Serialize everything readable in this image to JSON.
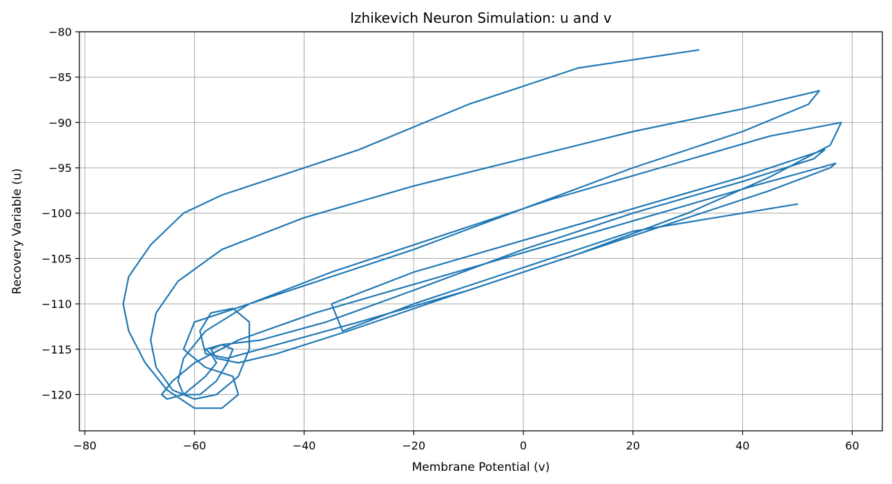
{
  "chart_data": {
    "type": "line",
    "title": "Izhikevich Neuron Simulation: u and v",
    "xlabel": "Membrane Potential (v)",
    "ylabel": "Recovery Variable (u)",
    "xlim": [
      -81,
      65.5
    ],
    "ylim": [
      -124,
      -80
    ],
    "xticks": [
      -80,
      -60,
      -40,
      -20,
      0,
      20,
      40,
      60
    ],
    "xtick_labels": [
      "−80",
      "−60",
      "−40",
      "−20",
      "0",
      "20",
      "40",
      "60"
    ],
    "yticks": [
      -80,
      -85,
      -90,
      -95,
      -100,
      -105,
      -110,
      -115,
      -120
    ],
    "ytick_labels": [
      "−80",
      "−85",
      "−90",
      "−95",
      "−100",
      "−105",
      "−110",
      "−115",
      "−120"
    ],
    "grid": true,
    "line_color": "#1f77b4",
    "series": [
      {
        "values": {
          "x": [
            32,
            10,
            -10,
            -30,
            -45,
            -55,
            -62,
            -68,
            -72,
            -73,
            -72,
            -69,
            -65,
            -60,
            -55,
            -52,
            -53,
            -58,
            -62,
            -60,
            -40,
            -20,
            0,
            20,
            40,
            52,
            54,
            40,
            20,
            0,
            -20,
            -40,
            -55,
            -63,
            -67,
            -68,
            -67,
            -64,
            -60,
            -56,
            -52,
            -50,
            -50,
            -53,
            -57,
            -59,
            -58,
            -54,
            -45,
            -30,
            -10,
            10,
            30,
            45,
            56,
            58,
            45,
            25,
            5,
            -15,
            -35,
            -50,
            -58,
            -62,
            -63,
            -62,
            -59,
            -56,
            -54,
            -53,
            -55,
            -57,
            -56,
            -52,
            -45,
            -32,
            -15,
            5,
            25,
            45,
            56,
            57,
            42,
            22,
            2,
            -18,
            -38,
            -52,
            -60,
            -64,
            -66,
            -65,
            -62,
            -58,
            -56,
            -57,
            -58,
            -55,
            -48,
            -36,
            -20,
            0,
            20,
            40,
            53,
            55,
            40,
            20,
            0,
            -20,
            -35,
            -33,
            -20,
            0,
            20,
            40,
            50
          ],
          "y": [
            -82,
            -84,
            -88,
            -93,
            -96,
            -98,
            -100,
            -103.5,
            -107,
            -110,
            -113,
            -116.5,
            -119.5,
            -121.5,
            -121.5,
            -120,
            -118,
            -117,
            -115,
            -112,
            -108,
            -104,
            -99.5,
            -95,
            -91,
            -88,
            -86.5,
            -88.5,
            -91,
            -94,
            -97,
            -100.5,
            -104,
            -107.5,
            -111,
            -114,
            -117,
            -119.5,
            -120.5,
            -120,
            -118,
            -115,
            -112,
            -110.5,
            -111,
            -113,
            -115.5,
            -116,
            -114.5,
            -112,
            -108.5,
            -104.5,
            -100,
            -96,
            -92.5,
            -90,
            -91.5,
            -95,
            -98.5,
            -102.5,
            -106.5,
            -110,
            -113,
            -116,
            -118.5,
            -120,
            -120,
            -118.5,
            -116.5,
            -115,
            -114.5,
            -115,
            -116,
            -116.5,
            -115.5,
            -113,
            -109.5,
            -105.5,
            -101.5,
            -97.5,
            -95,
            -94.5,
            -97,
            -100.5,
            -104,
            -107.5,
            -111,
            -114,
            -116.5,
            -118.5,
            -120,
            -120.5,
            -120,
            -118,
            -116.5,
            -115.5,
            -115,
            -114.5,
            -114,
            -112,
            -108.5,
            -104,
            -100,
            -96.5,
            -94,
            -93,
            -96,
            -99.5,
            -103,
            -106.5,
            -110,
            -113,
            -110,
            -106,
            -102,
            -100,
            -99
          ]
        }
      }
    ]
  }
}
